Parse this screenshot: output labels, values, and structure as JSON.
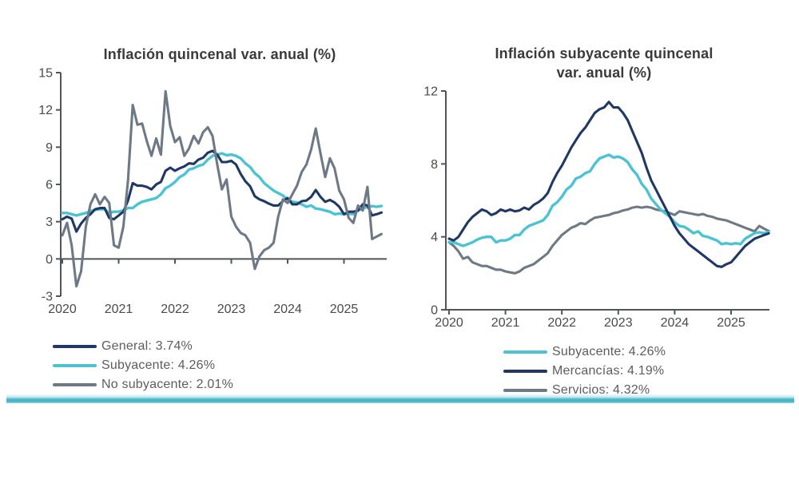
{
  "page": {
    "background": "#ffffff",
    "divider_color": "#45b5c6",
    "axis_color": "#4f555a",
    "tick_label_color": "#4a4a4a",
    "title_color": "#3a3a3a",
    "legend_text_color": "#5d5d5d"
  },
  "chart_data": [
    {
      "id": "left-chart",
      "type": "line",
      "title": "Inflación quincenal var. anual (%)",
      "xlabel": "",
      "ylabel": "",
      "ylim": [
        -3,
        15
      ],
      "xlim": [
        2020,
        2025.667
      ],
      "x_axis_at": 0,
      "grid": false,
      "legend_position": "bottom-left",
      "y_ticks": [
        15,
        12,
        9,
        6,
        3,
        0,
        -3
      ],
      "x_ticks": [
        2020,
        2021,
        2022,
        2023,
        2024,
        2025
      ],
      "x_start": 2020,
      "x_step": 0.0833333,
      "series": [
        {
          "name": "General",
          "legend": "General: 3.74%",
          "color": "#1f3864",
          "z": 2,
          "values": [
            3.2,
            3.4,
            3.25,
            2.2,
            2.85,
            3.3,
            3.6,
            4.0,
            4.1,
            4.1,
            3.3,
            3.2,
            3.5,
            3.8,
            4.7,
            6.1,
            5.9,
            5.9,
            5.8,
            5.6,
            6.0,
            6.2,
            7.1,
            7.35,
            7.1,
            7.3,
            7.45,
            7.7,
            7.65,
            8.0,
            8.15,
            8.55,
            8.7,
            8.4,
            7.8,
            7.8,
            7.9,
            7.6,
            6.85,
            6.25,
            5.85,
            5.05,
            4.8,
            4.65,
            4.45,
            4.3,
            4.3,
            4.65,
            4.9,
            4.4,
            4.4,
            4.65,
            4.7,
            5.0,
            5.55,
            5.0,
            4.6,
            4.75,
            4.55,
            4.2,
            3.6,
            3.8,
            3.8,
            3.9,
            4.4,
            4.3,
            3.5,
            3.6,
            3.74
          ]
        },
        {
          "name": "Subyacente",
          "legend": "Subyacente: 4.26%",
          "color": "#4cc3d5",
          "z": 1,
          "values": [
            3.7,
            3.7,
            3.6,
            3.5,
            3.6,
            3.7,
            3.85,
            3.95,
            4.0,
            4.0,
            3.7,
            3.8,
            3.8,
            3.9,
            4.1,
            4.1,
            4.4,
            4.6,
            4.7,
            4.8,
            4.9,
            5.2,
            5.7,
            5.9,
            6.2,
            6.6,
            6.8,
            7.2,
            7.3,
            7.5,
            7.6,
            8.0,
            8.3,
            8.4,
            8.5,
            8.35,
            8.4,
            8.3,
            8.1,
            7.7,
            7.4,
            6.9,
            6.6,
            6.1,
            5.8,
            5.5,
            5.3,
            5.1,
            4.8,
            4.6,
            4.55,
            4.4,
            4.2,
            4.3,
            4.05,
            4.0,
            3.9,
            3.8,
            3.6,
            3.65,
            3.6,
            3.65,
            3.6,
            3.9,
            4.05,
            4.2,
            4.25,
            4.2,
            4.26
          ]
        },
        {
          "name": "No subyacente",
          "legend": "No subyacente: 2.01%",
          "color": "#6d7a86",
          "z": 3,
          "values": [
            1.9,
            2.9,
            1.1,
            -2.2,
            -1.0,
            2.6,
            4.4,
            5.2,
            4.4,
            5.0,
            4.5,
            1.1,
            0.9,
            2.6,
            6.3,
            12.4,
            10.8,
            10.9,
            9.5,
            8.3,
            9.7,
            8.4,
            13.5,
            10.7,
            9.4,
            9.8,
            8.3,
            8.9,
            9.9,
            9.3,
            10.2,
            10.6,
            9.9,
            7.6,
            5.6,
            6.4,
            3.4,
            2.6,
            2.1,
            1.9,
            1.3,
            -0.8,
            0.2,
            0.7,
            0.9,
            1.3,
            3.4,
            4.8,
            4.5,
            5.2,
            5.9,
            7.0,
            7.6,
            8.8,
            10.5,
            8.5,
            6.6,
            8.1,
            7.3,
            5.5,
            4.8,
            3.3,
            2.9,
            4.3,
            3.9,
            5.8,
            1.6,
            1.8,
            2.01
          ]
        }
      ]
    },
    {
      "id": "right-chart",
      "type": "line",
      "title": "Inflación subyacente quincenal\nvar. anual (%)",
      "xlabel": "",
      "ylabel": "",
      "ylim": [
        0,
        12
      ],
      "xlim": [
        2020,
        2025.667
      ],
      "x_axis_at": 0,
      "grid": false,
      "legend_position": "bottom-center",
      "y_ticks": [
        12,
        8,
        4,
        0
      ],
      "x_ticks": [
        2020,
        2021,
        2022,
        2023,
        2024,
        2025
      ],
      "x_start": 2020,
      "x_step": 0.0833333,
      "series": [
        {
          "name": "Subyacente",
          "legend": "Subyacente: 4.26%",
          "color": "#4cc3d5",
          "z": 2,
          "values": [
            3.7,
            3.7,
            3.6,
            3.5,
            3.6,
            3.7,
            3.85,
            3.95,
            4.0,
            4.0,
            3.7,
            3.8,
            3.8,
            3.9,
            4.1,
            4.1,
            4.4,
            4.6,
            4.7,
            4.8,
            4.9,
            5.2,
            5.7,
            5.9,
            6.2,
            6.6,
            6.8,
            7.2,
            7.3,
            7.5,
            7.6,
            8.0,
            8.3,
            8.4,
            8.5,
            8.35,
            8.4,
            8.3,
            8.1,
            7.7,
            7.4,
            6.9,
            6.6,
            6.1,
            5.8,
            5.5,
            5.3,
            5.1,
            4.8,
            4.6,
            4.55,
            4.4,
            4.2,
            4.3,
            4.05,
            4.0,
            3.9,
            3.8,
            3.6,
            3.65,
            3.6,
            3.65,
            3.6,
            3.9,
            4.05,
            4.2,
            4.25,
            4.2,
            4.26
          ]
        },
        {
          "name": "Mercancías",
          "legend": "Mercancías: 4.19%",
          "color": "#1f3864",
          "z": 3,
          "values": [
            3.9,
            3.8,
            4.0,
            4.4,
            4.8,
            5.1,
            5.3,
            5.5,
            5.4,
            5.2,
            5.3,
            5.5,
            5.4,
            5.5,
            5.4,
            5.45,
            5.6,
            5.5,
            5.75,
            5.9,
            6.1,
            6.4,
            7.0,
            7.5,
            7.9,
            8.4,
            8.9,
            9.3,
            9.7,
            10.0,
            10.4,
            10.8,
            11.0,
            11.1,
            11.4,
            11.1,
            11.1,
            10.8,
            10.4,
            9.8,
            9.2,
            8.6,
            7.8,
            7.1,
            6.6,
            6.1,
            5.6,
            5.1,
            4.6,
            4.2,
            3.9,
            3.6,
            3.4,
            3.2,
            3.0,
            2.8,
            2.6,
            2.4,
            2.35,
            2.5,
            2.6,
            2.9,
            3.2,
            3.5,
            3.7,
            3.9,
            4.0,
            4.1,
            4.19
          ]
        },
        {
          "name": "Servicios",
          "legend": "Servicios: 4.32%",
          "color": "#6d7a86",
          "z": 1,
          "values": [
            3.7,
            3.5,
            3.2,
            2.8,
            2.9,
            2.6,
            2.5,
            2.4,
            2.4,
            2.3,
            2.2,
            2.2,
            2.1,
            2.05,
            2.0,
            2.1,
            2.3,
            2.4,
            2.5,
            2.7,
            2.9,
            3.1,
            3.5,
            3.8,
            4.1,
            4.3,
            4.5,
            4.6,
            4.75,
            4.7,
            4.9,
            5.05,
            5.1,
            5.15,
            5.2,
            5.3,
            5.35,
            5.45,
            5.5,
            5.6,
            5.65,
            5.6,
            5.65,
            5.6,
            5.5,
            5.45,
            5.4,
            5.3,
            5.2,
            5.4,
            5.35,
            5.3,
            5.25,
            5.2,
            5.25,
            5.15,
            5.1,
            5.0,
            4.95,
            4.9,
            4.8,
            4.7,
            4.6,
            4.5,
            4.4,
            4.3,
            4.6,
            4.45,
            4.32
          ]
        }
      ]
    }
  ]
}
